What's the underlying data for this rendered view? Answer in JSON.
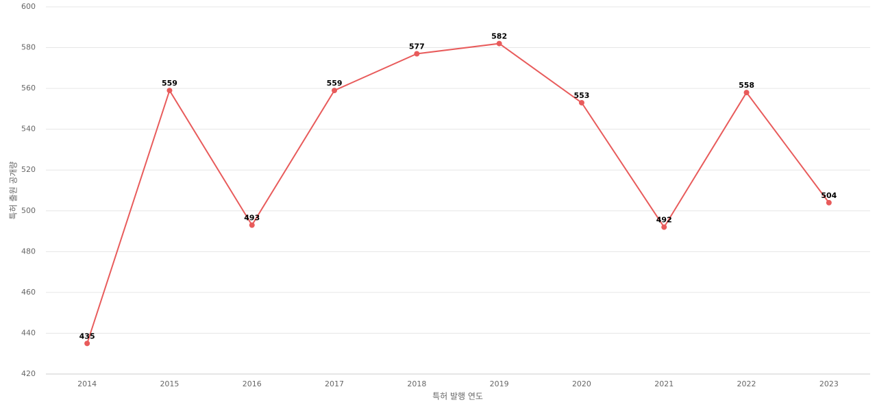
{
  "chart_data": {
    "type": "line",
    "categories": [
      "2014",
      "2015",
      "2016",
      "2017",
      "2018",
      "2019",
      "2020",
      "2021",
      "2022",
      "2023"
    ],
    "series": [
      {
        "color": "#e85b5b",
        "values": [
          435,
          559,
          493,
          559,
          577,
          582,
          553,
          492,
          558,
          504
        ]
      }
    ],
    "x_label": "특허 발행 연도",
    "y_label": "특허 출원 공개량",
    "ylim": [
      420,
      600
    ],
    "yticks": [
      420,
      440,
      460,
      480,
      500,
      520,
      540,
      560,
      580,
      600
    ],
    "grid": true
  }
}
